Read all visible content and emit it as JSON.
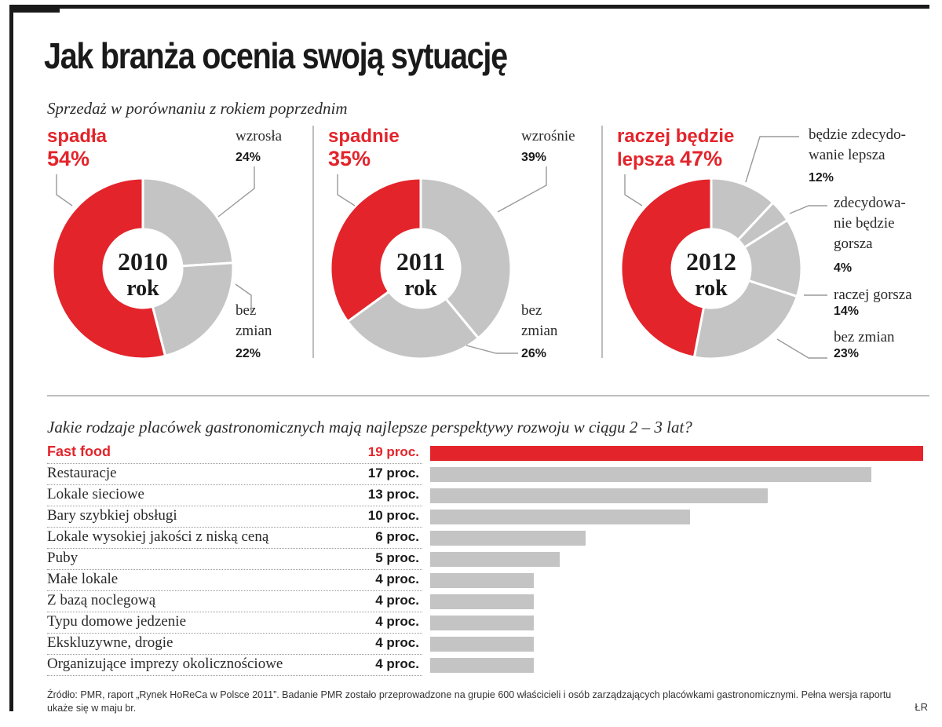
{
  "title": "Jak branża ocenia swoją sytuację",
  "subtitle_donuts": "Sprzedaż w porównaniu z rokiem poprzednim",
  "subtitle_bars": "Jakie rodzaje placówek gastronomicznych mają najlepsze perspektywy rozwoju w ciągu 2 – 3 lat?",
  "source": "Źródło: PMR, raport „Rynek HoReCa w Polsce 2011”. Badanie PMR zostało przeprowadzone na grupie 600 właścicieli i osób zarządzających placówkami gastronomicznymi. Pełna wersja raportu ukaże się w maju br.",
  "credit": "ŁR",
  "colors": {
    "red": "#e3242b",
    "gray": "#c4c4c4",
    "text": "#1a1a1a"
  },
  "chart_data": [
    {
      "type": "pie",
      "title": "2010 rok",
      "center_year": "2010",
      "center_word": "rok",
      "highlight": {
        "label": "spadła",
        "value_text": "54%"
      },
      "slices": [
        {
          "label": "spadła",
          "value": 54,
          "value_text": "54%",
          "color": "#e3242b"
        },
        {
          "label": "wzrosła",
          "value": 24,
          "value_text": "24%",
          "color": "#c4c4c4"
        },
        {
          "label": "bez zmian",
          "value": 22,
          "value_text": "22%",
          "color": "#c4c4c4"
        }
      ],
      "labels": [
        {
          "lines": [
            "wzrosła"
          ],
          "value_text": "24%"
        },
        {
          "lines": [
            "bez",
            "zmian"
          ],
          "value_text": "22%"
        }
      ]
    },
    {
      "type": "pie",
      "title": "2011 rok",
      "center_year": "2011",
      "center_word": "rok",
      "highlight": {
        "label": "spadnie",
        "value_text": "35%"
      },
      "slices": [
        {
          "label": "spadnie",
          "value": 35,
          "value_text": "35%",
          "color": "#e3242b"
        },
        {
          "label": "wzrośnie",
          "value": 39,
          "value_text": "39%",
          "color": "#c4c4c4"
        },
        {
          "label": "bez zmian",
          "value": 26,
          "value_text": "26%",
          "color": "#c4c4c4"
        }
      ],
      "labels": [
        {
          "lines": [
            "wzrośnie"
          ],
          "value_text": "39%"
        },
        {
          "lines": [
            "bez",
            "zmian"
          ],
          "value_text": "26%"
        }
      ]
    },
    {
      "type": "pie",
      "title": "2012 rok",
      "center_year": "2012",
      "center_word": "rok",
      "highlight": {
        "label_line1": "raczej będzie",
        "label_line2": "lepsza",
        "value_text": "47%"
      },
      "slices": [
        {
          "label": "raczej będzie lepsza",
          "value": 47,
          "value_text": "47%",
          "color": "#e3242b"
        },
        {
          "label": "będzie zdecydowanie lepsza",
          "value": 12,
          "value_text": "12%",
          "color": "#c4c4c4"
        },
        {
          "label": "zdecydowanie będzie gorsza",
          "value": 4,
          "value_text": "4%",
          "color": "#c4c4c4"
        },
        {
          "label": "raczej gorsza",
          "value": 14,
          "value_text": "14%",
          "color": "#c4c4c4"
        },
        {
          "label": "bez zmian",
          "value": 23,
          "value_text": "23%",
          "color": "#c4c4c4"
        }
      ],
      "labels": [
        {
          "lines": [
            "będzie zdecydo-",
            "wanie lepsza"
          ],
          "value_text": "12%"
        },
        {
          "lines": [
            "zdecydowa-",
            "nie będzie",
            "gorsza"
          ],
          "value_text": "4%"
        },
        {
          "lines": [
            "raczej gorsza"
          ],
          "value_text": "14%"
        },
        {
          "lines": [
            "bez zmian"
          ],
          "value_text": "23%"
        }
      ]
    },
    {
      "type": "bar",
      "title": "Jakie rodzaje placówek gastronomicznych mają najlepsze perspektywy rozwoju w ciągu 2 – 3 lat?",
      "unit": "proc.",
      "xlim": [
        0,
        19
      ],
      "categories": [
        "Fast food",
        "Restauracje",
        "Lokale sieciowe",
        "Bary szybkiej obsługi",
        "Lokale wysokiej jakości z niską ceną",
        "Puby",
        "Małe lokale",
        "Z bazą noclegową",
        "Typu domowe jedzenie",
        "Ekskluzywne, drogie",
        "Organizujące imprezy okolicznościowe"
      ],
      "values": [
        19,
        17,
        13,
        10,
        6,
        5,
        4,
        4,
        4,
        4,
        4
      ],
      "value_labels": [
        "19 proc.",
        "17 proc.",
        "13 proc.",
        "10 proc.",
        "6 proc.",
        "5 proc.",
        "4 proc.",
        "4 proc.",
        "4 proc.",
        "4 proc.",
        "4 proc."
      ],
      "highlight_index": 0
    }
  ]
}
